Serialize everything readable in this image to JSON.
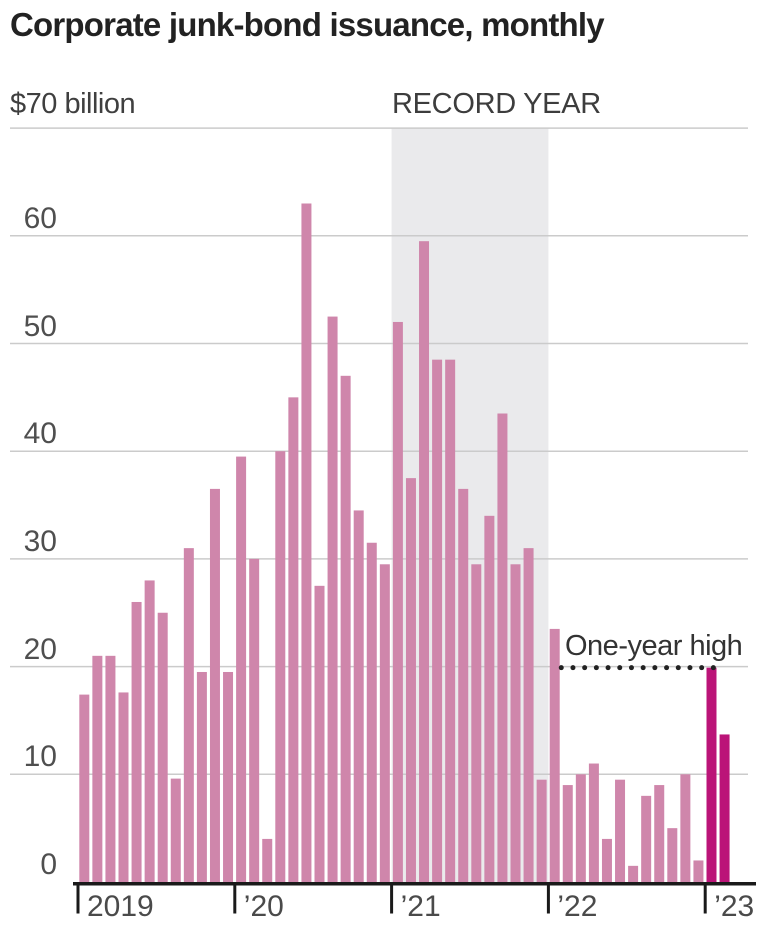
{
  "title": "Corporate junk-bond issuance, monthly",
  "y_axis": {
    "top_label": "$70 billion",
    "tick_values": [
      60,
      50,
      40,
      30,
      20,
      10,
      0
    ]
  },
  "x_axis": {
    "tick_labels": [
      "2019",
      "’20",
      "’21",
      "’22",
      "’23"
    ]
  },
  "annotations": {
    "record_year": {
      "label": "RECORD YEAR"
    },
    "one_year_high": {
      "label": "One-year high",
      "level_billion": 19.9
    }
  },
  "colors": {
    "bar": "#cf86ab",
    "bar_highlight": "#bb1478",
    "record_band": "#eaeaec",
    "gridline": "#cbcbcb",
    "axis": "#1a1a1a",
    "dotted_line": "#222222",
    "text": "#2b2b2b"
  },
  "chart_data": {
    "type": "bar",
    "title": "Corporate junk-bond issuance, monthly",
    "unit": "billion USD",
    "ylabel": "$ billion",
    "xlabel": "",
    "ylim": [
      0,
      70
    ],
    "grid": true,
    "x": [
      "2019-01",
      "2019-02",
      "2019-03",
      "2019-04",
      "2019-05",
      "2019-06",
      "2019-07",
      "2019-08",
      "2019-09",
      "2019-10",
      "2019-11",
      "2019-12",
      "2020-01",
      "2020-02",
      "2020-03",
      "2020-04",
      "2020-05",
      "2020-06",
      "2020-07",
      "2020-08",
      "2020-09",
      "2020-10",
      "2020-11",
      "2020-12",
      "2021-01",
      "2021-02",
      "2021-03",
      "2021-04",
      "2021-05",
      "2021-06",
      "2021-07",
      "2021-08",
      "2021-09",
      "2021-10",
      "2021-11",
      "2021-12",
      "2022-01",
      "2022-02",
      "2022-03",
      "2022-04",
      "2022-05",
      "2022-06",
      "2022-07",
      "2022-08",
      "2022-09",
      "2022-10",
      "2022-11",
      "2022-12",
      "2023-01",
      "2023-02"
    ],
    "values": [
      17.4,
      21,
      21,
      17.6,
      26,
      28,
      25,
      9.6,
      31,
      19.5,
      36.5,
      19.5,
      39.5,
      30,
      4,
      40,
      45,
      63,
      27.5,
      52.5,
      47,
      34.5,
      31.5,
      29.5,
      52,
      37.5,
      59.5,
      48.5,
      48.5,
      36.5,
      29.5,
      34,
      43.5,
      29.5,
      31,
      9.5,
      23.5,
      9,
      10,
      11,
      4,
      9.5,
      1.5,
      8,
      9,
      5,
      10,
      2,
      19.9,
      13.7
    ],
    "highlight_months": [
      "2023-01",
      "2023-02"
    ],
    "record_band": {
      "from": "2021-01",
      "to": "2021-12",
      "label": "RECORD YEAR"
    },
    "annotation_line": {
      "label": "One-year high",
      "level": 19.9,
      "from": "2022-02",
      "to": "2023-01"
    }
  }
}
